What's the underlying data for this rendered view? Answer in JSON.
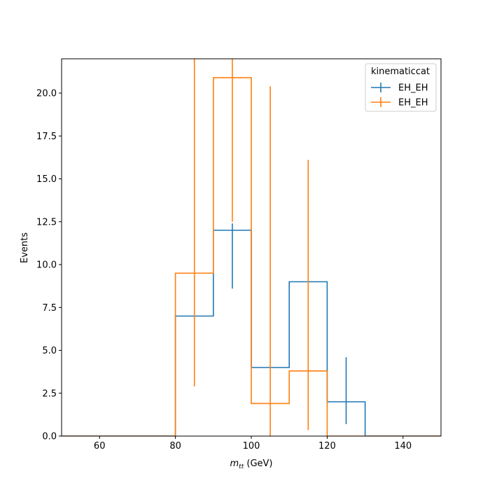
{
  "chart_data": {
    "type": "histogram-step",
    "xlabel_main": "m",
    "xlabel_sub": "tt",
    "xlabel_unit": " (GeV)",
    "ylabel": "Events",
    "xlim": [
      50,
      150
    ],
    "ylim": [
      0,
      22
    ],
    "xticks": [
      60,
      80,
      100,
      120,
      140
    ],
    "xtick_labels": [
      "60",
      "80",
      "100",
      "120",
      "140"
    ],
    "yticks": [
      0,
      2.5,
      5,
      7.5,
      10,
      12.5,
      15,
      17.5,
      20
    ],
    "ytick_labels": [
      "0.0",
      "2.5",
      "5.0",
      "7.5",
      "10.0",
      "12.5",
      "15.0",
      "17.5",
      "20.0"
    ],
    "bin_edges": [
      50,
      60,
      70,
      80,
      90,
      100,
      110,
      120,
      130,
      140,
      150
    ],
    "legend": {
      "title": "kinematiccat",
      "placement": "upper right"
    },
    "series": [
      {
        "name": "EH_EH",
        "color": "#1f77b4",
        "values": [
          0,
          0,
          0,
          7.0,
          12.0,
          4.0,
          9.0,
          2.0,
          0,
          0
        ],
        "errors": [
          {
            "x": 95,
            "lo": 8.6,
            "hi": 12.4
          },
          {
            "x": 125,
            "lo": 0.7,
            "hi": 4.6
          }
        ]
      },
      {
        "name": "EH_EH",
        "color": "#ff7f0e",
        "values": [
          0,
          0,
          0,
          9.5,
          20.9,
          1.9,
          3.8,
          0,
          0,
          0
        ],
        "errors": [
          {
            "x": 85,
            "lo": 2.9,
            "hi": 22
          },
          {
            "x": 95,
            "lo": 12.5,
            "hi": 22
          },
          {
            "x": 105,
            "lo": 0,
            "hi": 20.4
          },
          {
            "x": 115,
            "lo": 0.35,
            "hi": 16.1
          }
        ]
      }
    ]
  }
}
